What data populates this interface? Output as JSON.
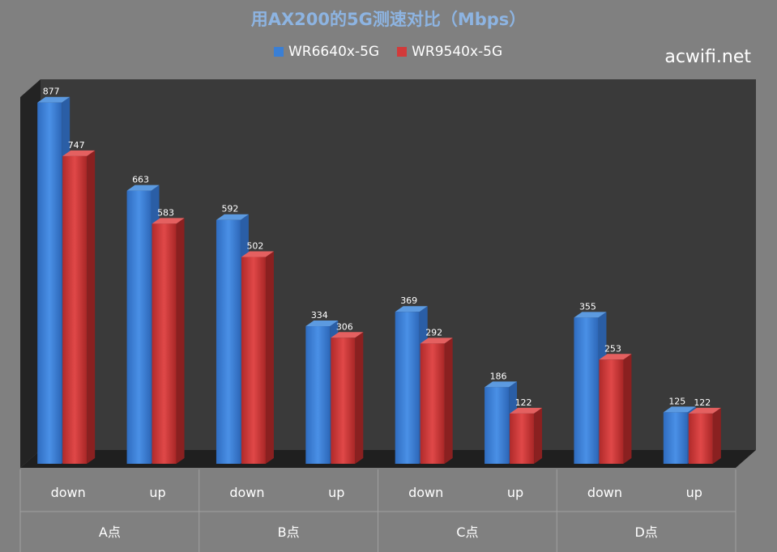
{
  "header": {
    "title": "用AX200的5G测速对比（Mbps）",
    "watermark": "acwifi.net"
  },
  "colors": {
    "blue": "#3a7fd5",
    "red": "#d23a3a",
    "back": "#3a3a3a",
    "background": "#808080"
  },
  "chart_data": {
    "type": "bar",
    "categories": [
      "down",
      "up",
      "down",
      "up",
      "down",
      "up",
      "down",
      "up"
    ],
    "groups": [
      "A点",
      "B点",
      "C点",
      "D点"
    ],
    "series": [
      {
        "name": "WR6640x-5G",
        "values": [
          877,
          663,
          592,
          334,
          369,
          186,
          355,
          125
        ]
      },
      {
        "name": "WR9540x-5G",
        "values": [
          747,
          583,
          502,
          306,
          292,
          122,
          253,
          122
        ]
      }
    ],
    "ylim": [
      0,
      900
    ],
    "legend": "top",
    "grid": false,
    "data_labels": true
  }
}
